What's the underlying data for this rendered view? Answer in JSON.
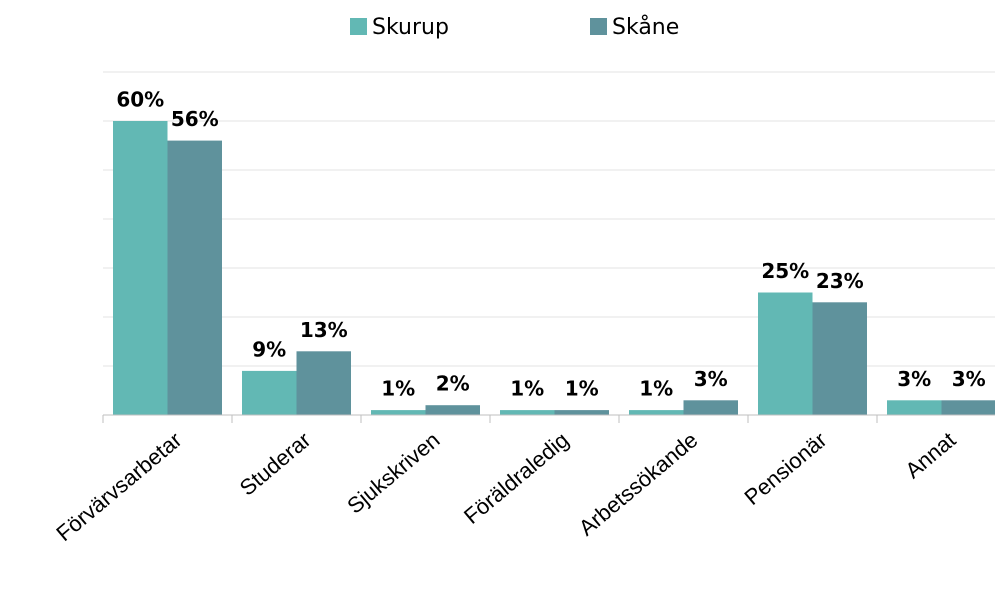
{
  "chart_data": {
    "type": "bar",
    "categories": [
      "Förvärvsarbetar",
      "Studerar",
      "Sjukskriven",
      "Föräldraledig",
      "Arbetssökande",
      "Pensionär",
      "Annat"
    ],
    "series": [
      {
        "name": "Skurup",
        "color": "#62b8b4",
        "values": [
          60,
          9,
          1,
          1,
          1,
          25,
          3
        ],
        "value_labels": [
          "60%",
          "9%",
          "1%",
          "1%",
          "1%",
          "25%",
          "3%"
        ]
      },
      {
        "name": "Skåne",
        "color": "#5f929c",
        "values": [
          56,
          13,
          2,
          1,
          3,
          23,
          3
        ],
        "value_labels": [
          "56%",
          "13%",
          "2%",
          "1%",
          "3%",
          "23%",
          "3%"
        ]
      }
    ],
    "ylim": [
      0,
      70
    ],
    "yticks": [
      0,
      10,
      20,
      30,
      40,
      50,
      60,
      70
    ],
    "grid": true,
    "legend": "top"
  }
}
